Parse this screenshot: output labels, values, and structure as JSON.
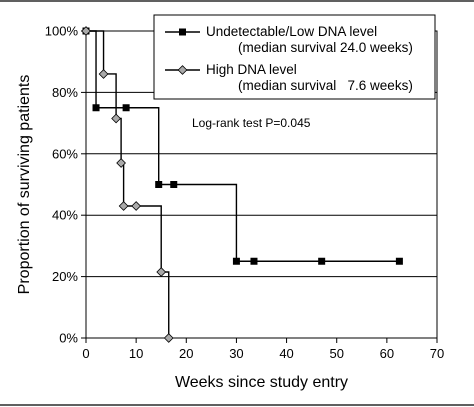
{
  "chart_data": {
    "type": "line",
    "xlabel": "Weeks since study entry",
    "ylabel": "Proportion of surviving patients",
    "xlim": [
      0,
      70
    ],
    "ylim": [
      0,
      100
    ],
    "x_ticks": [
      "0",
      "10",
      "20",
      "30",
      "40",
      "50",
      "60",
      "70"
    ],
    "y_ticks": [
      "0%",
      "20%",
      "40%",
      "60%",
      "80%",
      "100%"
    ],
    "grid": "horizontal",
    "legend_position": "top-right",
    "annotation": "Log-rank test P=0.045",
    "series": [
      {
        "name": "Undetectable/Low DNA level",
        "name_note": "(median survival 24.0 weeks)",
        "marker": "square",
        "color": "#000000",
        "step_points": [
          [
            0,
            100
          ],
          [
            2,
            75
          ],
          [
            8,
            75
          ],
          [
            14.5,
            50
          ],
          [
            17.5,
            50
          ],
          [
            30,
            25
          ],
          [
            33.5,
            25
          ],
          [
            47,
            25
          ],
          [
            62.5,
            25
          ]
        ],
        "markers": [
          [
            0,
            100
          ],
          [
            2,
            75
          ],
          [
            8,
            75
          ],
          [
            14.5,
            50
          ],
          [
            17.5,
            50
          ],
          [
            30,
            25
          ],
          [
            33.5,
            25
          ],
          [
            47,
            25
          ],
          [
            62.5,
            25
          ]
        ]
      },
      {
        "name": "High DNA level",
        "name_note": "(median survival   7.6 weeks)",
        "marker": "diamond",
        "color": "#000000",
        "marker_fill": "#a9a9a9",
        "step_points": [
          [
            0,
            100
          ],
          [
            3.5,
            86
          ],
          [
            6,
            71.5
          ],
          [
            7,
            57
          ],
          [
            7.5,
            43
          ],
          [
            10,
            43
          ],
          [
            15,
            21.5
          ],
          [
            16.5,
            0
          ]
        ],
        "markers": [
          [
            0,
            100
          ],
          [
            3.5,
            86
          ],
          [
            6,
            71.5
          ],
          [
            7,
            57
          ],
          [
            7.5,
            43
          ],
          [
            10,
            43
          ],
          [
            15,
            21.5
          ],
          [
            16.5,
            0
          ]
        ]
      }
    ]
  }
}
